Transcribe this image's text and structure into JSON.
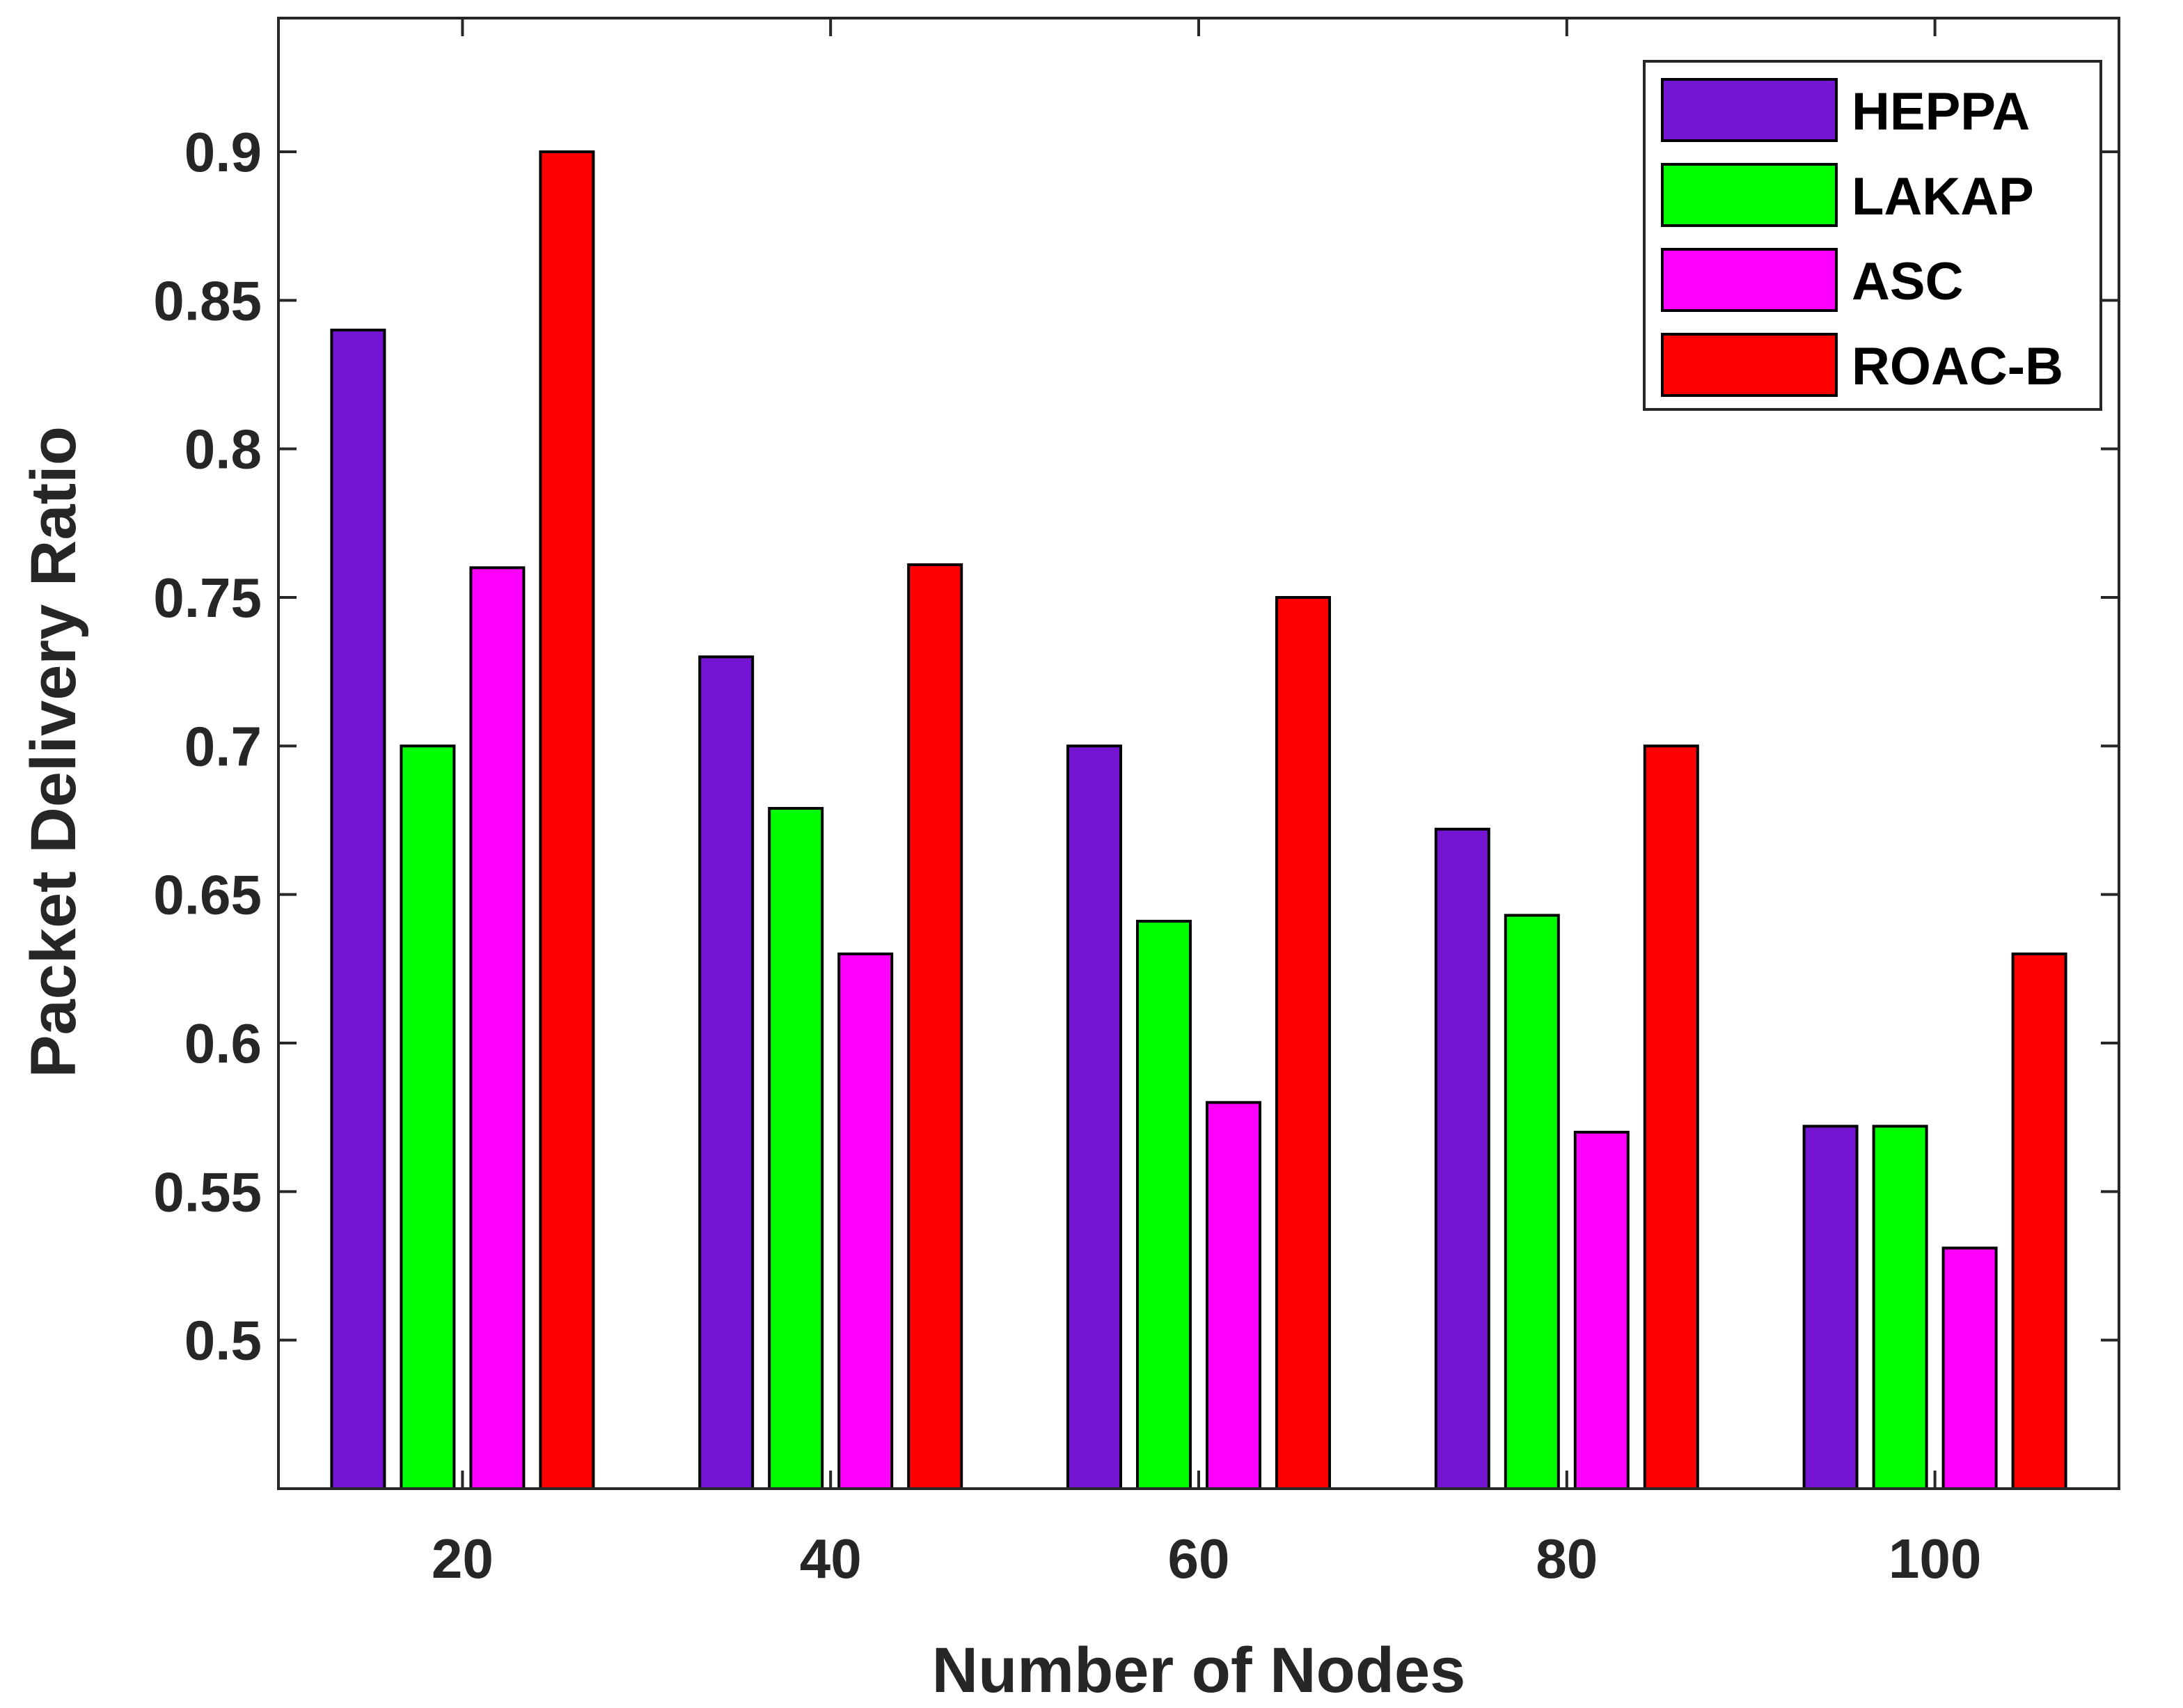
{
  "chart_data": {
    "type": "bar",
    "title": "",
    "xlabel": "Number of Nodes",
    "ylabel": "Packet Delivery Ratio",
    "categories": [
      "20",
      "40",
      "60",
      "80",
      "100"
    ],
    "ylim": [
      0.45,
      0.945
    ],
    "yticks": [
      0.5,
      0.55,
      0.6,
      0.65,
      0.7,
      0.75,
      0.8,
      0.85,
      0.9
    ],
    "ytick_labels": [
      "0.5",
      "0.55",
      "0.6",
      "0.65",
      "0.7",
      "0.75",
      "0.8",
      "0.85",
      "0.9"
    ],
    "grid": false,
    "legend_position": "top-right",
    "series": [
      {
        "name": "HEPPA",
        "color": "#7315d2",
        "values": [
          0.84,
          0.73,
          0.7,
          0.672,
          0.572
        ]
      },
      {
        "name": "LAKAP",
        "color": "#00ff00",
        "values": [
          0.7,
          0.679,
          0.641,
          0.643,
          0.572
        ]
      },
      {
        "name": "ASC",
        "color": "#ff00ff",
        "values": [
          0.76,
          0.63,
          0.58,
          0.57,
          0.531
        ]
      },
      {
        "name": "ROAC-B",
        "color": "#ff0000",
        "values": [
          0.9,
          0.761,
          0.75,
          0.7,
          0.63
        ]
      }
    ]
  }
}
